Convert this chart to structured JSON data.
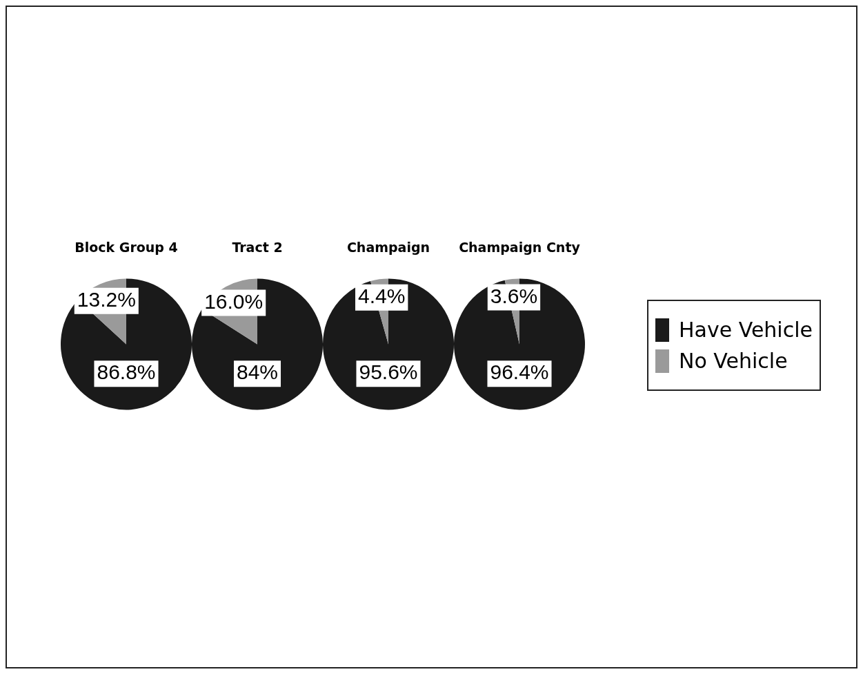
{
  "chart_data": {
    "type": "pie",
    "categories": [
      "Have Vehicle",
      "No Vehicle"
    ],
    "colors": [
      "#1a1a1a",
      "#9a9a9a"
    ],
    "legend": "right",
    "series": [
      {
        "name": "Block Group 4",
        "values": [
          86.8,
          13.2
        ],
        "value_labels": [
          "86.8%",
          "13.2%"
        ]
      },
      {
        "name": "Tract 2",
        "values": [
          84,
          16
        ],
        "value_labels": [
          "84%",
          "16.0%"
        ]
      },
      {
        "name": "Champaign",
        "values": [
          95.6,
          4.4
        ],
        "value_labels": [
          "95.6%",
          "4.4%"
        ]
      },
      {
        "name": "Champaign Cnty",
        "values": [
          96.4,
          3.6
        ],
        "value_labels": [
          "96.4%",
          "3.6%"
        ]
      }
    ]
  }
}
